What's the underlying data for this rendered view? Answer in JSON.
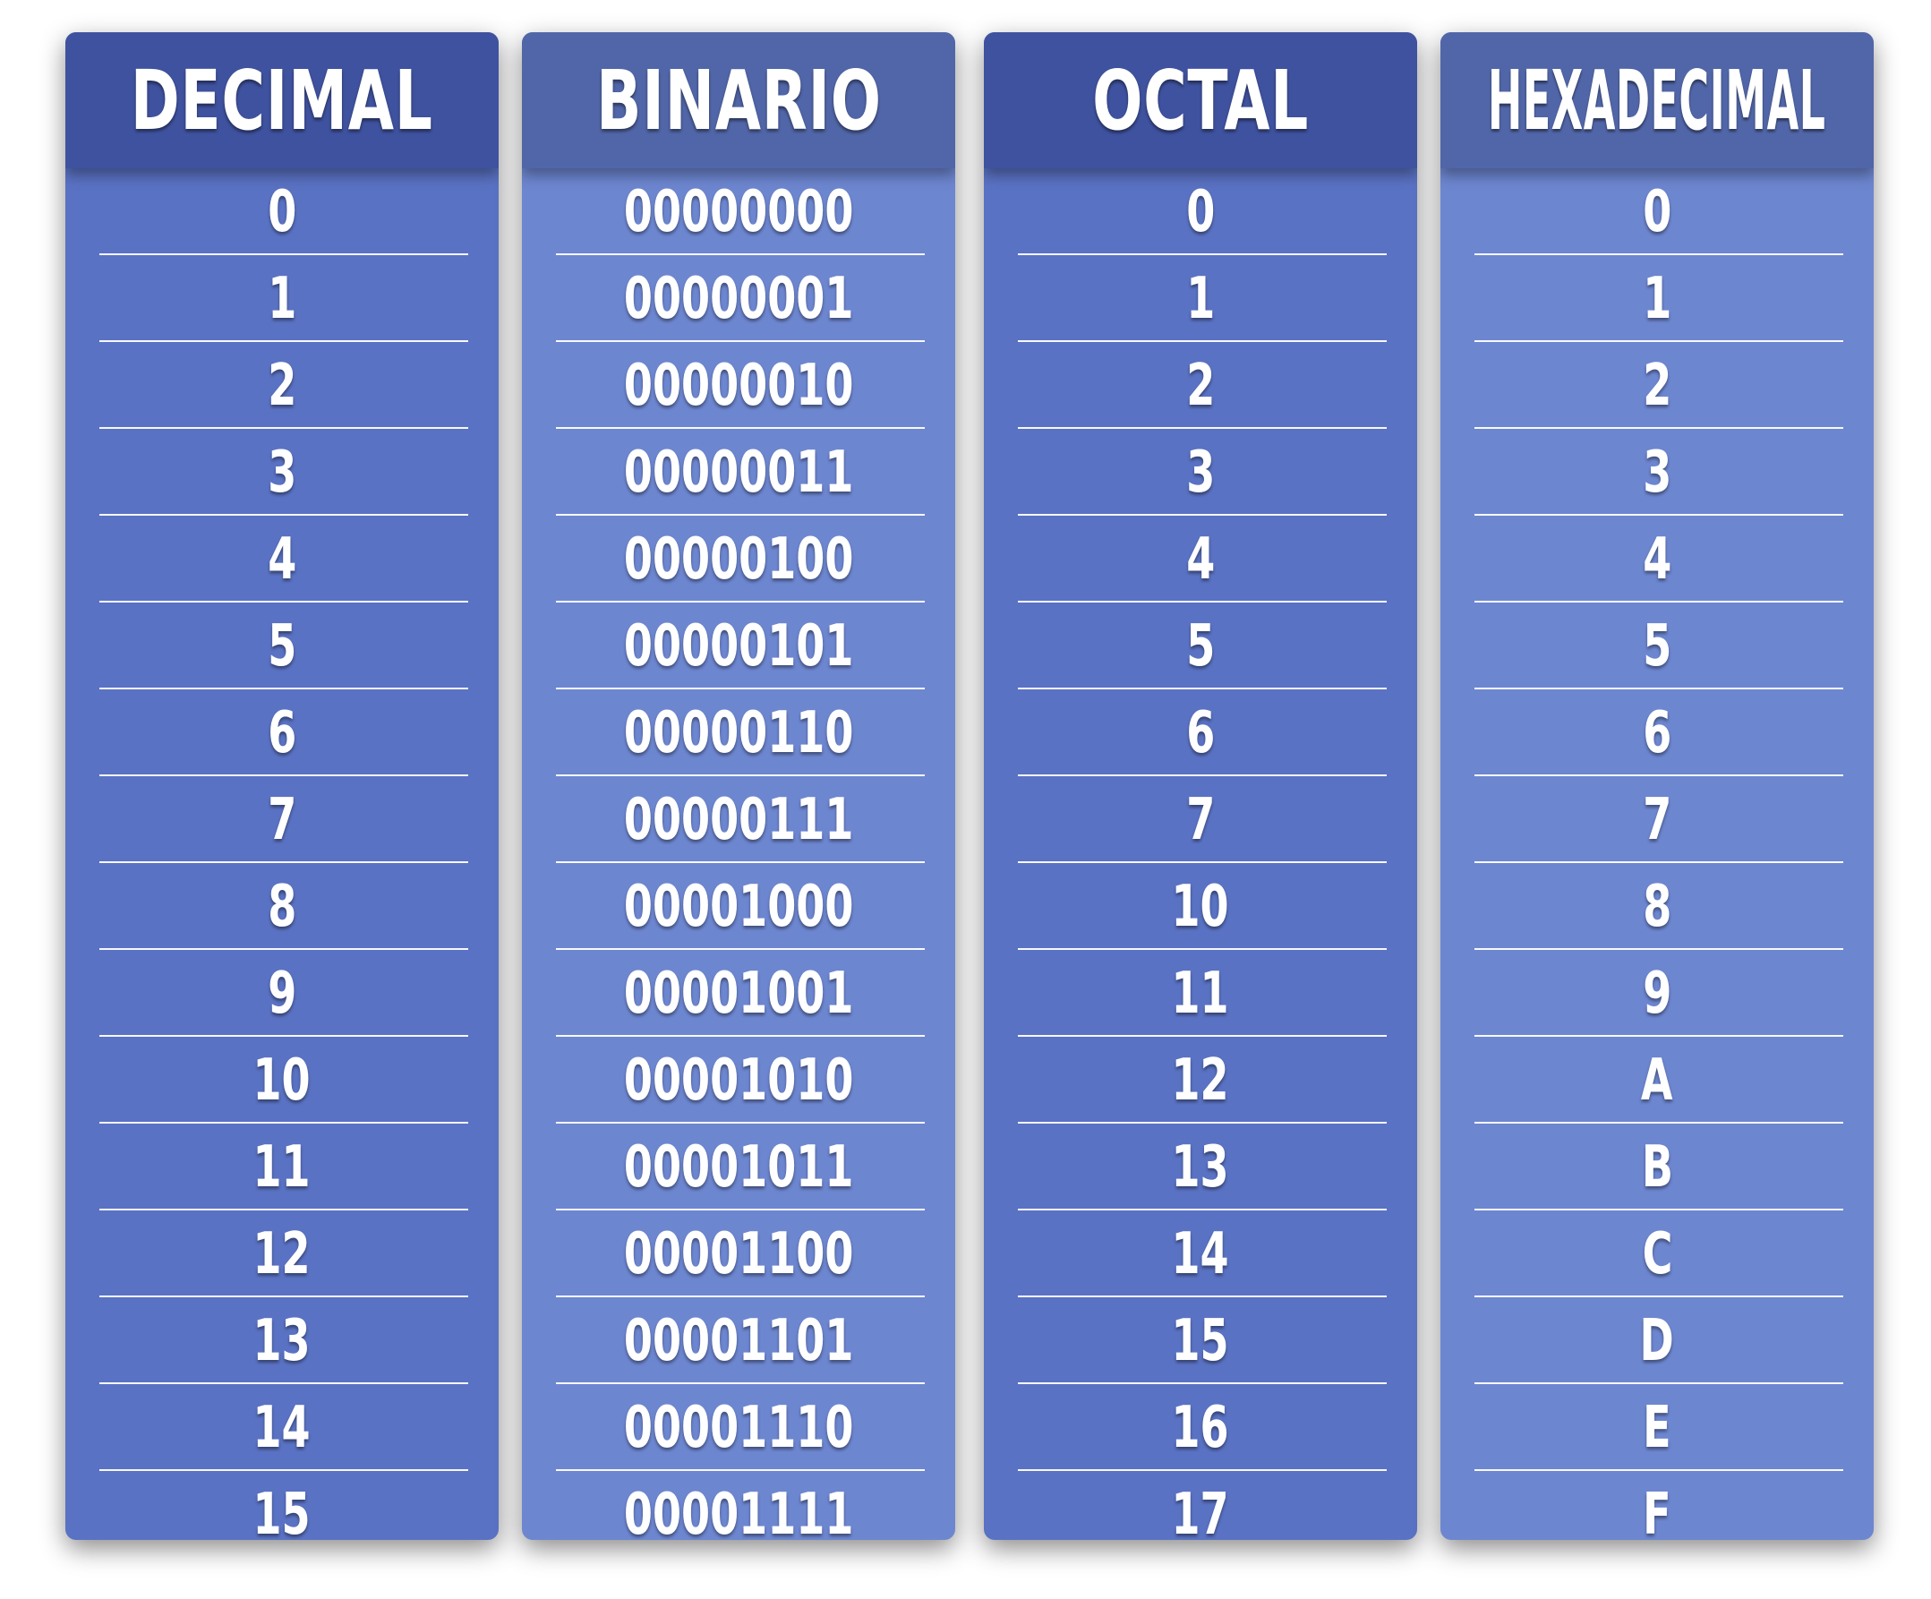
{
  "columns": [
    {
      "header": "DECIMAL",
      "values": [
        "0",
        "1",
        "2",
        "3",
        "4",
        "5",
        "6",
        "7",
        "8",
        "9",
        "10",
        "11",
        "12",
        "13",
        "14",
        "15"
      ]
    },
    {
      "header": "BINARIO",
      "values": [
        "00000000",
        "00000001",
        "00000010",
        "00000011",
        "00000100",
        "00000101",
        "00000110",
        "00000111",
        "00001000",
        "00001001",
        "00001010",
        "00001011",
        "00001100",
        "00001101",
        "00001110",
        "00001111"
      ]
    },
    {
      "header": "OCTAL",
      "values": [
        "0",
        "1",
        "2",
        "3",
        "4",
        "5",
        "6",
        "7",
        "10",
        "11",
        "12",
        "13",
        "14",
        "15",
        "16",
        "17"
      ]
    },
    {
      "header": "HEXADECIMAL",
      "values": [
        "0",
        "1",
        "2",
        "3",
        "4",
        "5",
        "6",
        "7",
        "8",
        "9",
        "A",
        "B",
        "C",
        "D",
        "E",
        "F"
      ]
    }
  ],
  "colors": {
    "header_dark": "#3f529f",
    "header_light": "#5166a8",
    "body_dark": "#5a72c3",
    "body_light": "#6d86d0",
    "text": "#ffffff"
  }
}
